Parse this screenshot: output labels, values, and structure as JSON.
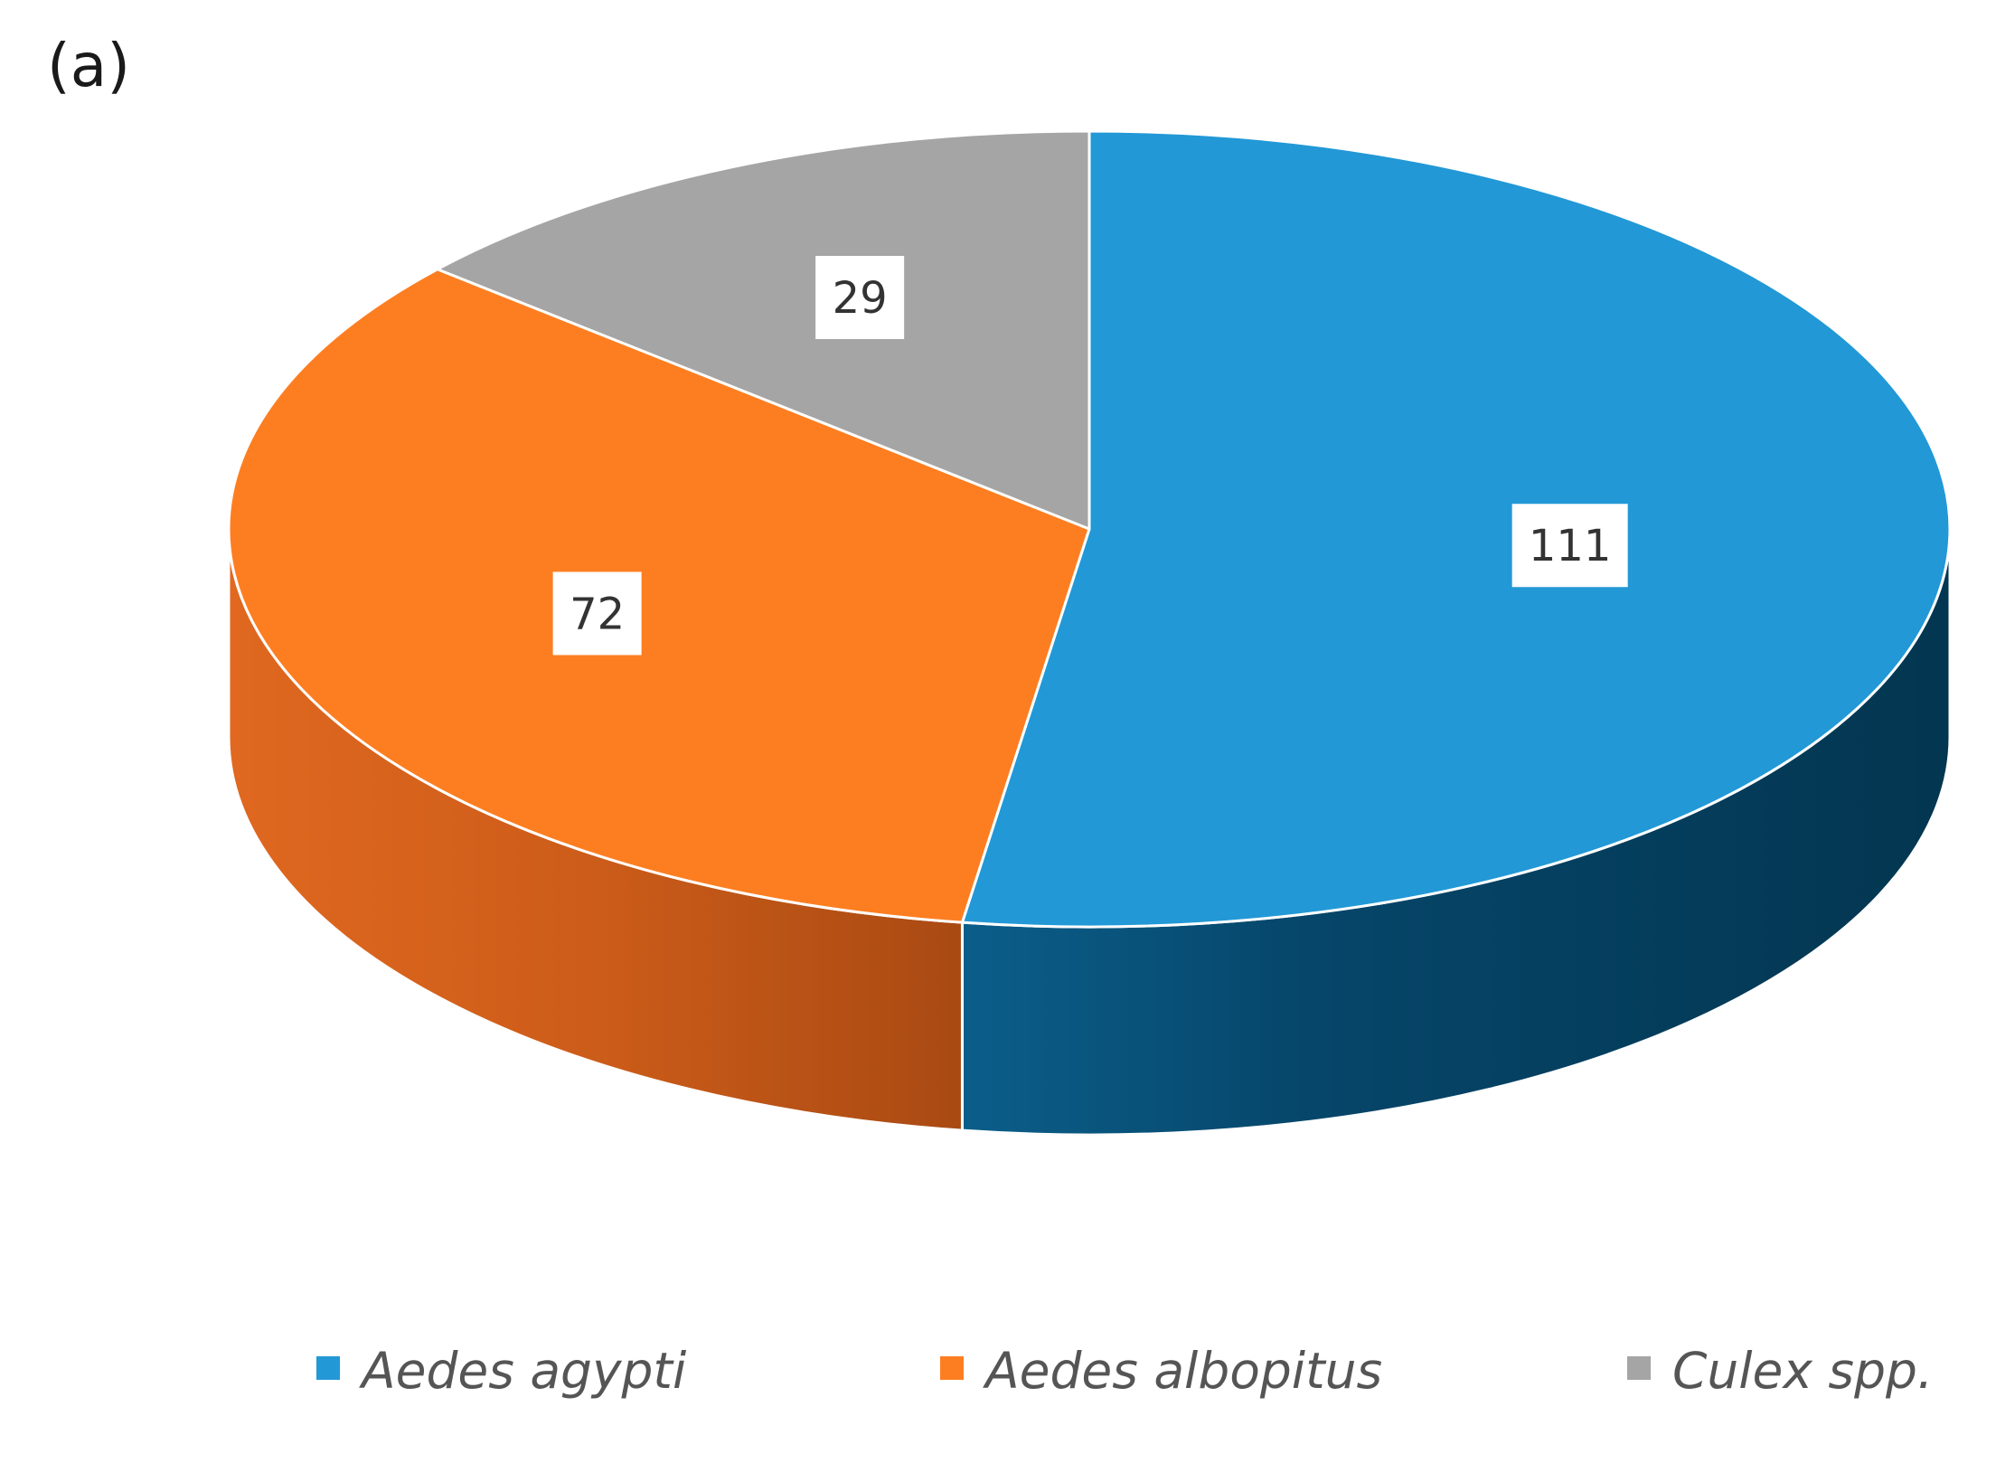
{
  "panel_label": "(a)",
  "chart_data": {
    "type": "pie",
    "title": "",
    "style": "3d",
    "slices": [
      {
        "label": "Aedes agypti",
        "value": 111,
        "color": "#2298D6",
        "side_color": "#033650"
      },
      {
        "label": "Aedes albopitus",
        "value": 72,
        "color": "#FD7E21",
        "side_color": "#C85716"
      },
      {
        "label": "Culex spp.",
        "value": 29,
        "color": "#A5A5A5",
        "side_color": "#7E7E7E"
      }
    ],
    "data_labels": true,
    "legend_position": "bottom"
  }
}
